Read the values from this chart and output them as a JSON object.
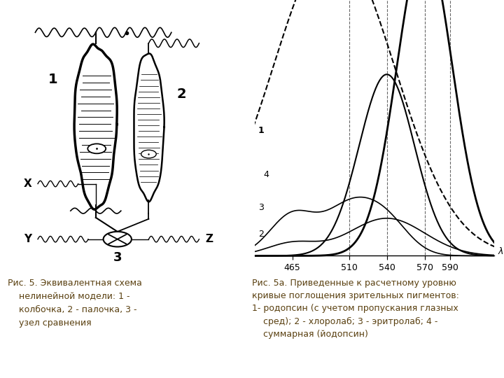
{
  "fig_width": 7.2,
  "fig_height": 5.4,
  "dpi": 100,
  "bg_color": "#ffffff",
  "caption_bg_color": "#f0e6a0",
  "caption_left": "Рис. 5. Эквивалентная схема\n    нелинейной модели: 1 -\n    колбочка, 2 - палочка, 3 -\n    узел сравнения",
  "caption_right": "Рис. 5а. Приведенные к расчетному уровню\nкривые поглощения зрительных пигментов:\n1- родопсин (с учетом пропускания глазных\n    сред); 2 - хлоролаб; 3 - эритролаб; 4 -\n    суммарная (йодопсин)",
  "xaxis_ticks": [
    465,
    510,
    540,
    570,
    590
  ],
  "xaxis_labels": [
    "465",
    "510",
    "540",
    "570",
    "590"
  ],
  "vlines": [
    510,
    540,
    570,
    590
  ],
  "curve1_mu": 500,
  "curve1_sigma": 45,
  "curve1_amp": 1.0,
  "curve2_mu": 540,
  "curve2_sigma": 18,
  "curve2_amp": 0.08,
  "curve3_mu": 500,
  "curve3_sigma": 25,
  "curve3_amp": 0.18,
  "curve4_mu": 570,
  "curve4_sigma": 22,
  "curve4_amp": 1.0,
  "curve4b_mu": 540,
  "curve4b_sigma": 22,
  "curve4b_amp": 0.58
}
